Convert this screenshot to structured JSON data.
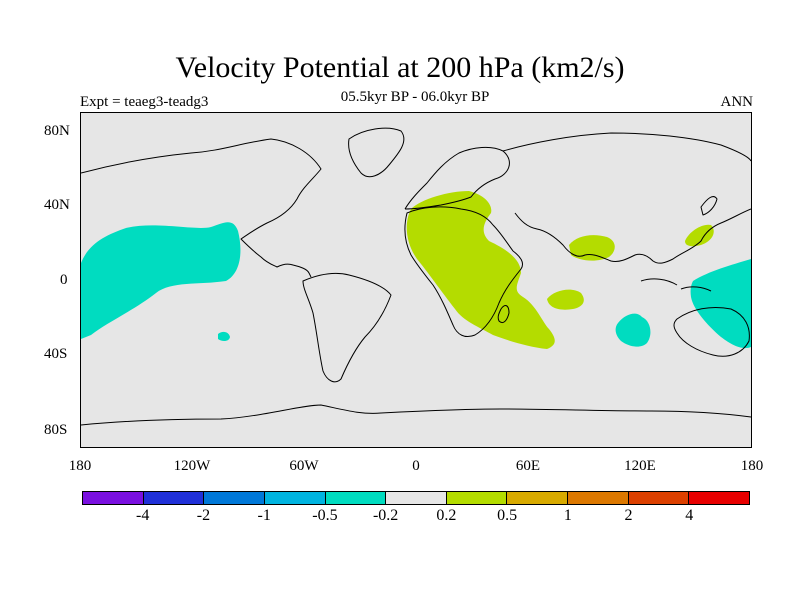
{
  "title": "Velocity Potential at 200 hPa (km2/s)",
  "subtitle": "05.5kyr BP - 06.0kyr BP",
  "experiment_label": "Expt = teaeg3-teadg3",
  "season_label": "ANN",
  "lat_labels": [
    "80N",
    "40N",
    "0",
    "40S",
    "80S"
  ],
  "lon_labels": [
    "180",
    "120W",
    "60W",
    "0",
    "60E",
    "120E",
    "180"
  ],
  "colors": {
    "ocean_land_background": "#e6e6e6",
    "coastline": "#000000",
    "negative_anomaly": "#00dcc0",
    "positive_anomaly": "#b4dc00"
  },
  "colorbar": {
    "colors": [
      "#7a10e0",
      "#2030d8",
      "#0078d8",
      "#00b4e0",
      "#00dcc0",
      "#e6e6e6",
      "#b4dc00",
      "#d8aa00",
      "#dc7800",
      "#dc4000",
      "#e80000"
    ],
    "labels": [
      "-4",
      "-2",
      "-1",
      "-0.5",
      "-0.2",
      "0.2",
      "0.5",
      "1",
      "2",
      "4"
    ]
  }
}
